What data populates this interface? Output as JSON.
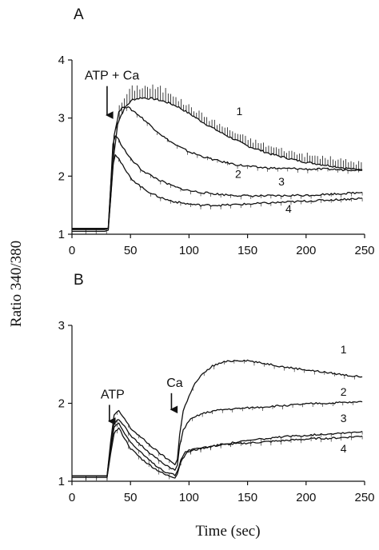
{
  "figure": {
    "ylabel": "Ratio 340/380",
    "xlabel": "Time (sec)"
  },
  "chart_data": [
    {
      "panel_label": "A",
      "type": "line",
      "xlim": [
        0,
        250
      ],
      "ylim": [
        1,
        4
      ],
      "xticks": [
        0,
        50,
        100,
        150,
        200,
        250
      ],
      "yticks": [
        1,
        2,
        3,
        4
      ],
      "annotations": [
        {
          "text": "ATP + Ca",
          "arrow_x": 30,
          "arrow_from_y": 3.55,
          "arrow_to_y": 3.05
        }
      ],
      "error_bars_series": "1",
      "series": [
        {
          "name": "1",
          "label_at": {
            "x": 143,
            "y": 3.05
          },
          "points": [
            [
              0,
              1.1
            ],
            [
              15,
              1.1
            ],
            [
              28,
              1.1
            ],
            [
              31,
              1.1
            ],
            [
              33,
              1.6
            ],
            [
              36,
              2.4
            ],
            [
              39,
              2.9
            ],
            [
              42,
              3.05
            ],
            [
              46,
              3.2
            ],
            [
              52,
              3.32
            ],
            [
              60,
              3.35
            ],
            [
              70,
              3.33
            ],
            [
              80,
              3.28
            ],
            [
              90,
              3.2
            ],
            [
              100,
              3.08
            ],
            [
              110,
              2.95
            ],
            [
              120,
              2.83
            ],
            [
              130,
              2.72
            ],
            [
              140,
              2.62
            ],
            [
              150,
              2.52
            ],
            [
              160,
              2.45
            ],
            [
              170,
              2.38
            ],
            [
              180,
              2.33
            ],
            [
              190,
              2.28
            ],
            [
              200,
              2.24
            ],
            [
              210,
              2.21
            ],
            [
              220,
              2.18
            ],
            [
              230,
              2.15
            ],
            [
              240,
              2.12
            ],
            [
              248,
              2.1
            ]
          ]
        },
        {
          "name": "2",
          "label_at": {
            "x": 142,
            "y": 1.97
          },
          "points": [
            [
              0,
              1.1
            ],
            [
              28,
              1.1
            ],
            [
              31,
              1.1
            ],
            [
              33,
              1.8
            ],
            [
              36,
              2.7
            ],
            [
              40,
              3.1
            ],
            [
              44,
              3.2
            ],
            [
              48,
              3.18
            ],
            [
              54,
              3.1
            ],
            [
              60,
              3.0
            ],
            [
              70,
              2.82
            ],
            [
              80,
              2.65
            ],
            [
              90,
              2.52
            ],
            [
              100,
              2.42
            ],
            [
              110,
              2.35
            ],
            [
              120,
              2.29
            ],
            [
              130,
              2.24
            ],
            [
              140,
              2.2
            ],
            [
              150,
              2.17
            ],
            [
              160,
              2.15
            ],
            [
              170,
              2.14
            ],
            [
              180,
              2.13
            ],
            [
              190,
              2.13
            ],
            [
              200,
              2.12
            ],
            [
              210,
              2.12
            ],
            [
              220,
              2.12
            ],
            [
              230,
              2.11
            ],
            [
              240,
              2.11
            ],
            [
              248,
              2.11
            ]
          ]
        },
        {
          "name": "3",
          "label_at": {
            "x": 179,
            "y": 1.84
          },
          "points": [
            [
              0,
              1.08
            ],
            [
              28,
              1.08
            ],
            [
              31,
              1.1
            ],
            [
              33,
              1.8
            ],
            [
              35,
              2.55
            ],
            [
              37,
              2.7
            ],
            [
              40,
              2.62
            ],
            [
              45,
              2.45
            ],
            [
              50,
              2.3
            ],
            [
              60,
              2.1
            ],
            [
              70,
              1.98
            ],
            [
              80,
              1.88
            ],
            [
              90,
              1.8
            ],
            [
              100,
              1.75
            ],
            [
              110,
              1.72
            ],
            [
              120,
              1.7
            ],
            [
              130,
              1.68
            ],
            [
              140,
              1.67
            ],
            [
              150,
              1.66
            ],
            [
              160,
              1.66
            ],
            [
              170,
              1.66
            ],
            [
              180,
              1.66
            ],
            [
              190,
              1.67
            ],
            [
              200,
              1.67
            ],
            [
              210,
              1.68
            ],
            [
              220,
              1.69
            ],
            [
              230,
              1.7
            ],
            [
              240,
              1.71
            ],
            [
              248,
              1.72
            ]
          ]
        },
        {
          "name": "4",
          "label_at": {
            "x": 185,
            "y": 1.37
          },
          "points": [
            [
              0,
              1.05
            ],
            [
              28,
              1.05
            ],
            [
              31,
              1.07
            ],
            [
              33,
              1.6
            ],
            [
              35,
              2.2
            ],
            [
              37,
              2.38
            ],
            [
              40,
              2.3
            ],
            [
              45,
              2.12
            ],
            [
              50,
              1.97
            ],
            [
              60,
              1.8
            ],
            [
              70,
              1.68
            ],
            [
              80,
              1.6
            ],
            [
              90,
              1.55
            ],
            [
              100,
              1.52
            ],
            [
              110,
              1.5
            ],
            [
              120,
              1.5
            ],
            [
              130,
              1.5
            ],
            [
              140,
              1.51
            ],
            [
              150,
              1.52
            ],
            [
              160,
              1.53
            ],
            [
              170,
              1.54
            ],
            [
              180,
              1.55
            ],
            [
              190,
              1.56
            ],
            [
              200,
              1.57
            ],
            [
              210,
              1.58
            ],
            [
              220,
              1.59
            ],
            [
              230,
              1.6
            ],
            [
              240,
              1.61
            ],
            [
              248,
              1.62
            ]
          ]
        }
      ]
    },
    {
      "panel_label": "B",
      "type": "line",
      "xlim": [
        0,
        250
      ],
      "ylim": [
        1,
        3
      ],
      "xticks": [
        0,
        50,
        100,
        150,
        200,
        250
      ],
      "yticks": [
        1,
        2,
        3
      ],
      "annotations": [
        {
          "text": "ATP",
          "arrow_x": 32,
          "arrow_from_y": 1.98,
          "arrow_to_y": 1.77
        },
        {
          "text": "Ca",
          "arrow_x": 85,
          "arrow_from_y": 2.13,
          "arrow_to_y": 1.92
        }
      ],
      "error_bars_series": "",
      "series": [
        {
          "name": "1",
          "label_at": {
            "x": 232,
            "y": 2.64
          },
          "points": [
            [
              0,
              1.07
            ],
            [
              30,
              1.07
            ],
            [
              33,
              1.5
            ],
            [
              36,
              1.85
            ],
            [
              40,
              1.9
            ],
            [
              45,
              1.8
            ],
            [
              50,
              1.68
            ],
            [
              60,
              1.55
            ],
            [
              70,
              1.42
            ],
            [
              80,
              1.3
            ],
            [
              88,
              1.22
            ],
            [
              90,
              1.28
            ],
            [
              92,
              1.6
            ],
            [
              95,
              1.9
            ],
            [
              100,
              2.1
            ],
            [
              105,
              2.25
            ],
            [
              110,
              2.35
            ],
            [
              120,
              2.48
            ],
            [
              130,
              2.53
            ],
            [
              140,
              2.55
            ],
            [
              150,
              2.55
            ],
            [
              160,
              2.52
            ],
            [
              170,
              2.5
            ],
            [
              180,
              2.47
            ],
            [
              190,
              2.45
            ],
            [
              200,
              2.43
            ],
            [
              210,
              2.41
            ],
            [
              220,
              2.39
            ],
            [
              230,
              2.37
            ],
            [
              240,
              2.35
            ],
            [
              248,
              2.34
            ]
          ]
        },
        {
          "name": "2",
          "label_at": {
            "x": 232,
            "y": 2.1
          },
          "points": [
            [
              0,
              1.07
            ],
            [
              30,
              1.07
            ],
            [
              33,
              1.45
            ],
            [
              36,
              1.75
            ],
            [
              40,
              1.8
            ],
            [
              45,
              1.7
            ],
            [
              50,
              1.58
            ],
            [
              60,
              1.45
            ],
            [
              70,
              1.32
            ],
            [
              80,
              1.2
            ],
            [
              88,
              1.15
            ],
            [
              90,
              1.2
            ],
            [
              92,
              1.45
            ],
            [
              95,
              1.65
            ],
            [
              100,
              1.78
            ],
            [
              110,
              1.86
            ],
            [
              120,
              1.9
            ],
            [
              130,
              1.92
            ],
            [
              140,
              1.93
            ],
            [
              150,
              1.94
            ],
            [
              160,
              1.95
            ],
            [
              170,
              1.96
            ],
            [
              180,
              1.97
            ],
            [
              190,
              1.98
            ],
            [
              200,
              1.99
            ],
            [
              210,
              2.0
            ],
            [
              220,
              2.0
            ],
            [
              230,
              2.01
            ],
            [
              240,
              2.01
            ],
            [
              248,
              2.02
            ]
          ]
        },
        {
          "name": "3",
          "label_at": {
            "x": 232,
            "y": 1.76
          },
          "points": [
            [
              0,
              1.05
            ],
            [
              30,
              1.05
            ],
            [
              33,
              1.4
            ],
            [
              36,
              1.7
            ],
            [
              40,
              1.75
            ],
            [
              45,
              1.62
            ],
            [
              50,
              1.5
            ],
            [
              60,
              1.35
            ],
            [
              70,
              1.22
            ],
            [
              80,
              1.12
            ],
            [
              88,
              1.08
            ],
            [
              90,
              1.12
            ],
            [
              93,
              1.28
            ],
            [
              97,
              1.38
            ],
            [
              100,
              1.4
            ],
            [
              110,
              1.43
            ],
            [
              120,
              1.45
            ],
            [
              130,
              1.48
            ],
            [
              140,
              1.5
            ],
            [
              150,
              1.52
            ],
            [
              160,
              1.54
            ],
            [
              170,
              1.55
            ],
            [
              180,
              1.57
            ],
            [
              190,
              1.58
            ],
            [
              200,
              1.59
            ],
            [
              210,
              1.6
            ],
            [
              220,
              1.61
            ],
            [
              230,
              1.62
            ],
            [
              240,
              1.63
            ],
            [
              248,
              1.64
            ]
          ]
        },
        {
          "name": "4",
          "label_at": {
            "x": 232,
            "y": 1.37
          },
          "points": [
            [
              0,
              1.05
            ],
            [
              30,
              1.05
            ],
            [
              33,
              1.35
            ],
            [
              36,
              1.62
            ],
            [
              40,
              1.68
            ],
            [
              45,
              1.55
            ],
            [
              50,
              1.42
            ],
            [
              60,
              1.28
            ],
            [
              70,
              1.17
            ],
            [
              80,
              1.08
            ],
            [
              88,
              1.05
            ],
            [
              90,
              1.1
            ],
            [
              93,
              1.25
            ],
            [
              97,
              1.35
            ],
            [
              100,
              1.38
            ],
            [
              110,
              1.42
            ],
            [
              120,
              1.45
            ],
            [
              130,
              1.47
            ],
            [
              140,
              1.48
            ],
            [
              150,
              1.49
            ],
            [
              160,
              1.5
            ],
            [
              170,
              1.51
            ],
            [
              180,
              1.52
            ],
            [
              190,
              1.53
            ],
            [
              200,
              1.54
            ],
            [
              210,
              1.55
            ],
            [
              220,
              1.55
            ],
            [
              230,
              1.56
            ],
            [
              240,
              1.57
            ],
            [
              248,
              1.58
            ]
          ]
        }
      ]
    }
  ]
}
